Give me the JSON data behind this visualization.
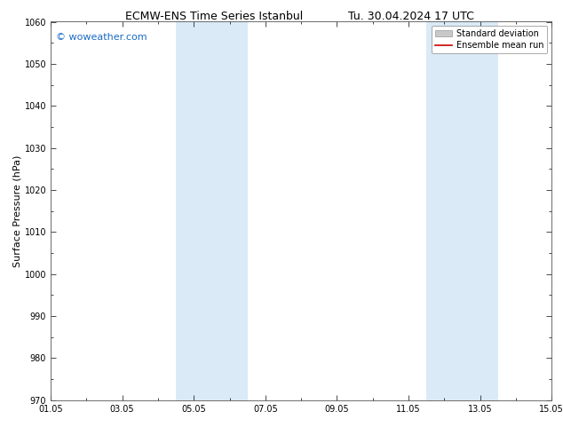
{
  "title_left": "ECMW-ENS Time Series Istanbul",
  "title_right": "Tu. 30.04.2024 17 UTC",
  "ylabel": "Surface Pressure (hPa)",
  "ylim": [
    970,
    1060
  ],
  "yticks": [
    970,
    980,
    990,
    1000,
    1010,
    1020,
    1030,
    1040,
    1050,
    1060
  ],
  "xlim_start": 0,
  "xlim_end": 14,
  "xtick_labels": [
    "01.05",
    "03.05",
    "05.05",
    "07.05",
    "09.05",
    "11.05",
    "13.05",
    "15.05"
  ],
  "xtick_positions": [
    0,
    2,
    4,
    6,
    8,
    10,
    12,
    14
  ],
  "shaded_bands": [
    {
      "x_start": 3.5,
      "x_end": 5.5
    },
    {
      "x_start": 10.5,
      "x_end": 12.5
    }
  ],
  "shaded_color": "#daeaf7",
  "watermark_text": "© woweather.com",
  "watermark_color": "#1a6bc4",
  "watermark_fontsize": 8,
  "title_fontsize": 9,
  "axis_label_fontsize": 8,
  "tick_fontsize": 7,
  "legend_fontsize": 7,
  "legend_items": [
    "Standard deviation",
    "Ensemble mean run"
  ],
  "legend_colors": [
    "#c8c8c8",
    "#cc0000"
  ],
  "background_color": "#ffffff",
  "plot_bg_color": "#ffffff",
  "border_color": "#555555",
  "tick_color": "#000000",
  "figure_width": 6.34,
  "figure_height": 4.9,
  "dpi": 100
}
